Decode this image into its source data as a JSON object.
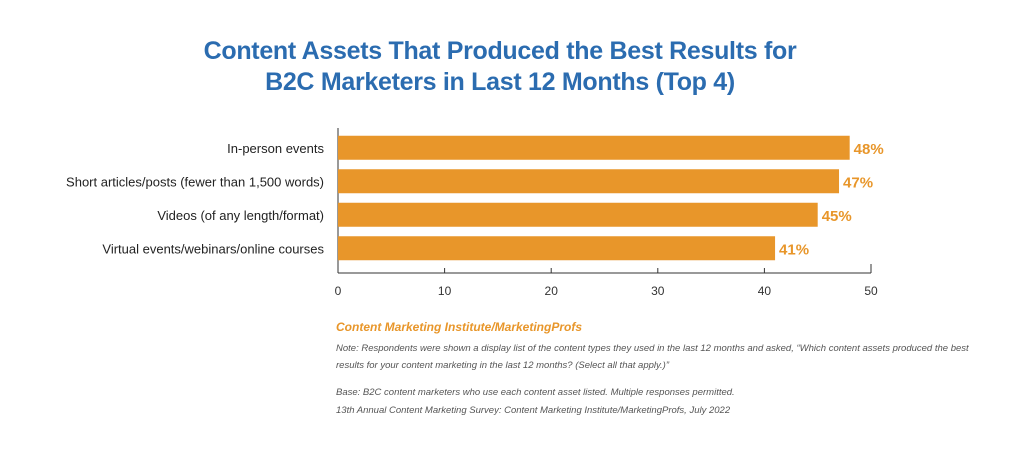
{
  "title": {
    "line1": "Content Assets That Produced the Best Results for",
    "line2": "B2C Marketers in Last 12 Months (Top 4)"
  },
  "chart_data": {
    "type": "bar",
    "orientation": "horizontal",
    "title": "Content Assets That Produced the Best Results for B2C Marketers in Last 12 Months (Top 4)",
    "categories": [
      "In-person events",
      "Short articles/posts (fewer than 1,500 words)",
      "Videos (of any length/format)",
      "Virtual events/webinars/online courses"
    ],
    "values": [
      48,
      47,
      45,
      41
    ],
    "data_labels": [
      "48%",
      "47%",
      "45%",
      "41%"
    ],
    "xlim": [
      0,
      50
    ],
    "xticks": [
      0,
      10,
      20,
      30,
      40,
      50
    ],
    "xlabel": "",
    "ylabel": "",
    "grid": false,
    "legend": "none",
    "bar_color": "#e8962a",
    "label_color": "#e8962a"
  },
  "footer": {
    "source": "Content Marketing Institute/MarketingProfs",
    "note": "Note: Respondents were shown a display list of the content types they used in the last 12 months and asked, “Which content assets produced the best results for your content marketing in the last 12 months? (Select all that apply.)”",
    "base": "Base: B2C content marketers who use each content asset listed. Multiple responses permitted.",
    "survey": "13th Annual Content Marketing Survey: Content Marketing Institute/MarketingProfs, July 2022"
  },
  "colors": {
    "title": "#2b6cb0",
    "bar": "#e8962a",
    "axis": "#333333",
    "note_text": "#555555"
  }
}
